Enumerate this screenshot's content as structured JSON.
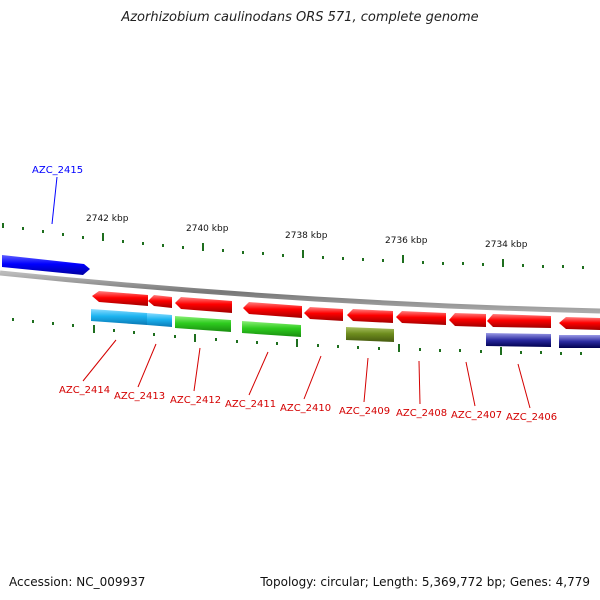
{
  "title": "Azorhizobium caulinodans ORS 571, complete genome",
  "accession": "Accession: NC_009937",
  "stats": "Topology: circular; Length: 5,369,772 bp; Genes: 4,779",
  "ticks": [
    {
      "label": "2742 kbp"
    },
    {
      "label": "2740 kbp"
    },
    {
      "label": "2738 kbp"
    },
    {
      "label": "2736 kbp"
    },
    {
      "label": "2734 kbp"
    }
  ],
  "genes": [
    {
      "id": "AZC_2415",
      "color": "#0000ff"
    },
    {
      "id": "AZC_2414",
      "color": "#d40000"
    },
    {
      "id": "AZC_2413",
      "color": "#d40000"
    },
    {
      "id": "AZC_2412",
      "color": "#d40000"
    },
    {
      "id": "AZC_2411",
      "color": "#d40000"
    },
    {
      "id": "AZC_2410",
      "color": "#d40000"
    },
    {
      "id": "AZC_2409",
      "color": "#d40000"
    },
    {
      "id": "AZC_2408",
      "color": "#d40000"
    },
    {
      "id": "AZC_2407",
      "color": "#d40000"
    },
    {
      "id": "AZC_2406",
      "color": "#d40000"
    }
  ],
  "colors": {
    "cds_red": "#ff0000",
    "cds_blue": "#0000ff",
    "cog_cyan": "#1cb4f0",
    "cog_green": "#2ecc1f",
    "cog_olive": "#6e8c1e",
    "cog_navy": "#0a0a78",
    "backbone": "#888888",
    "tick_green": "#1e6e1e"
  }
}
